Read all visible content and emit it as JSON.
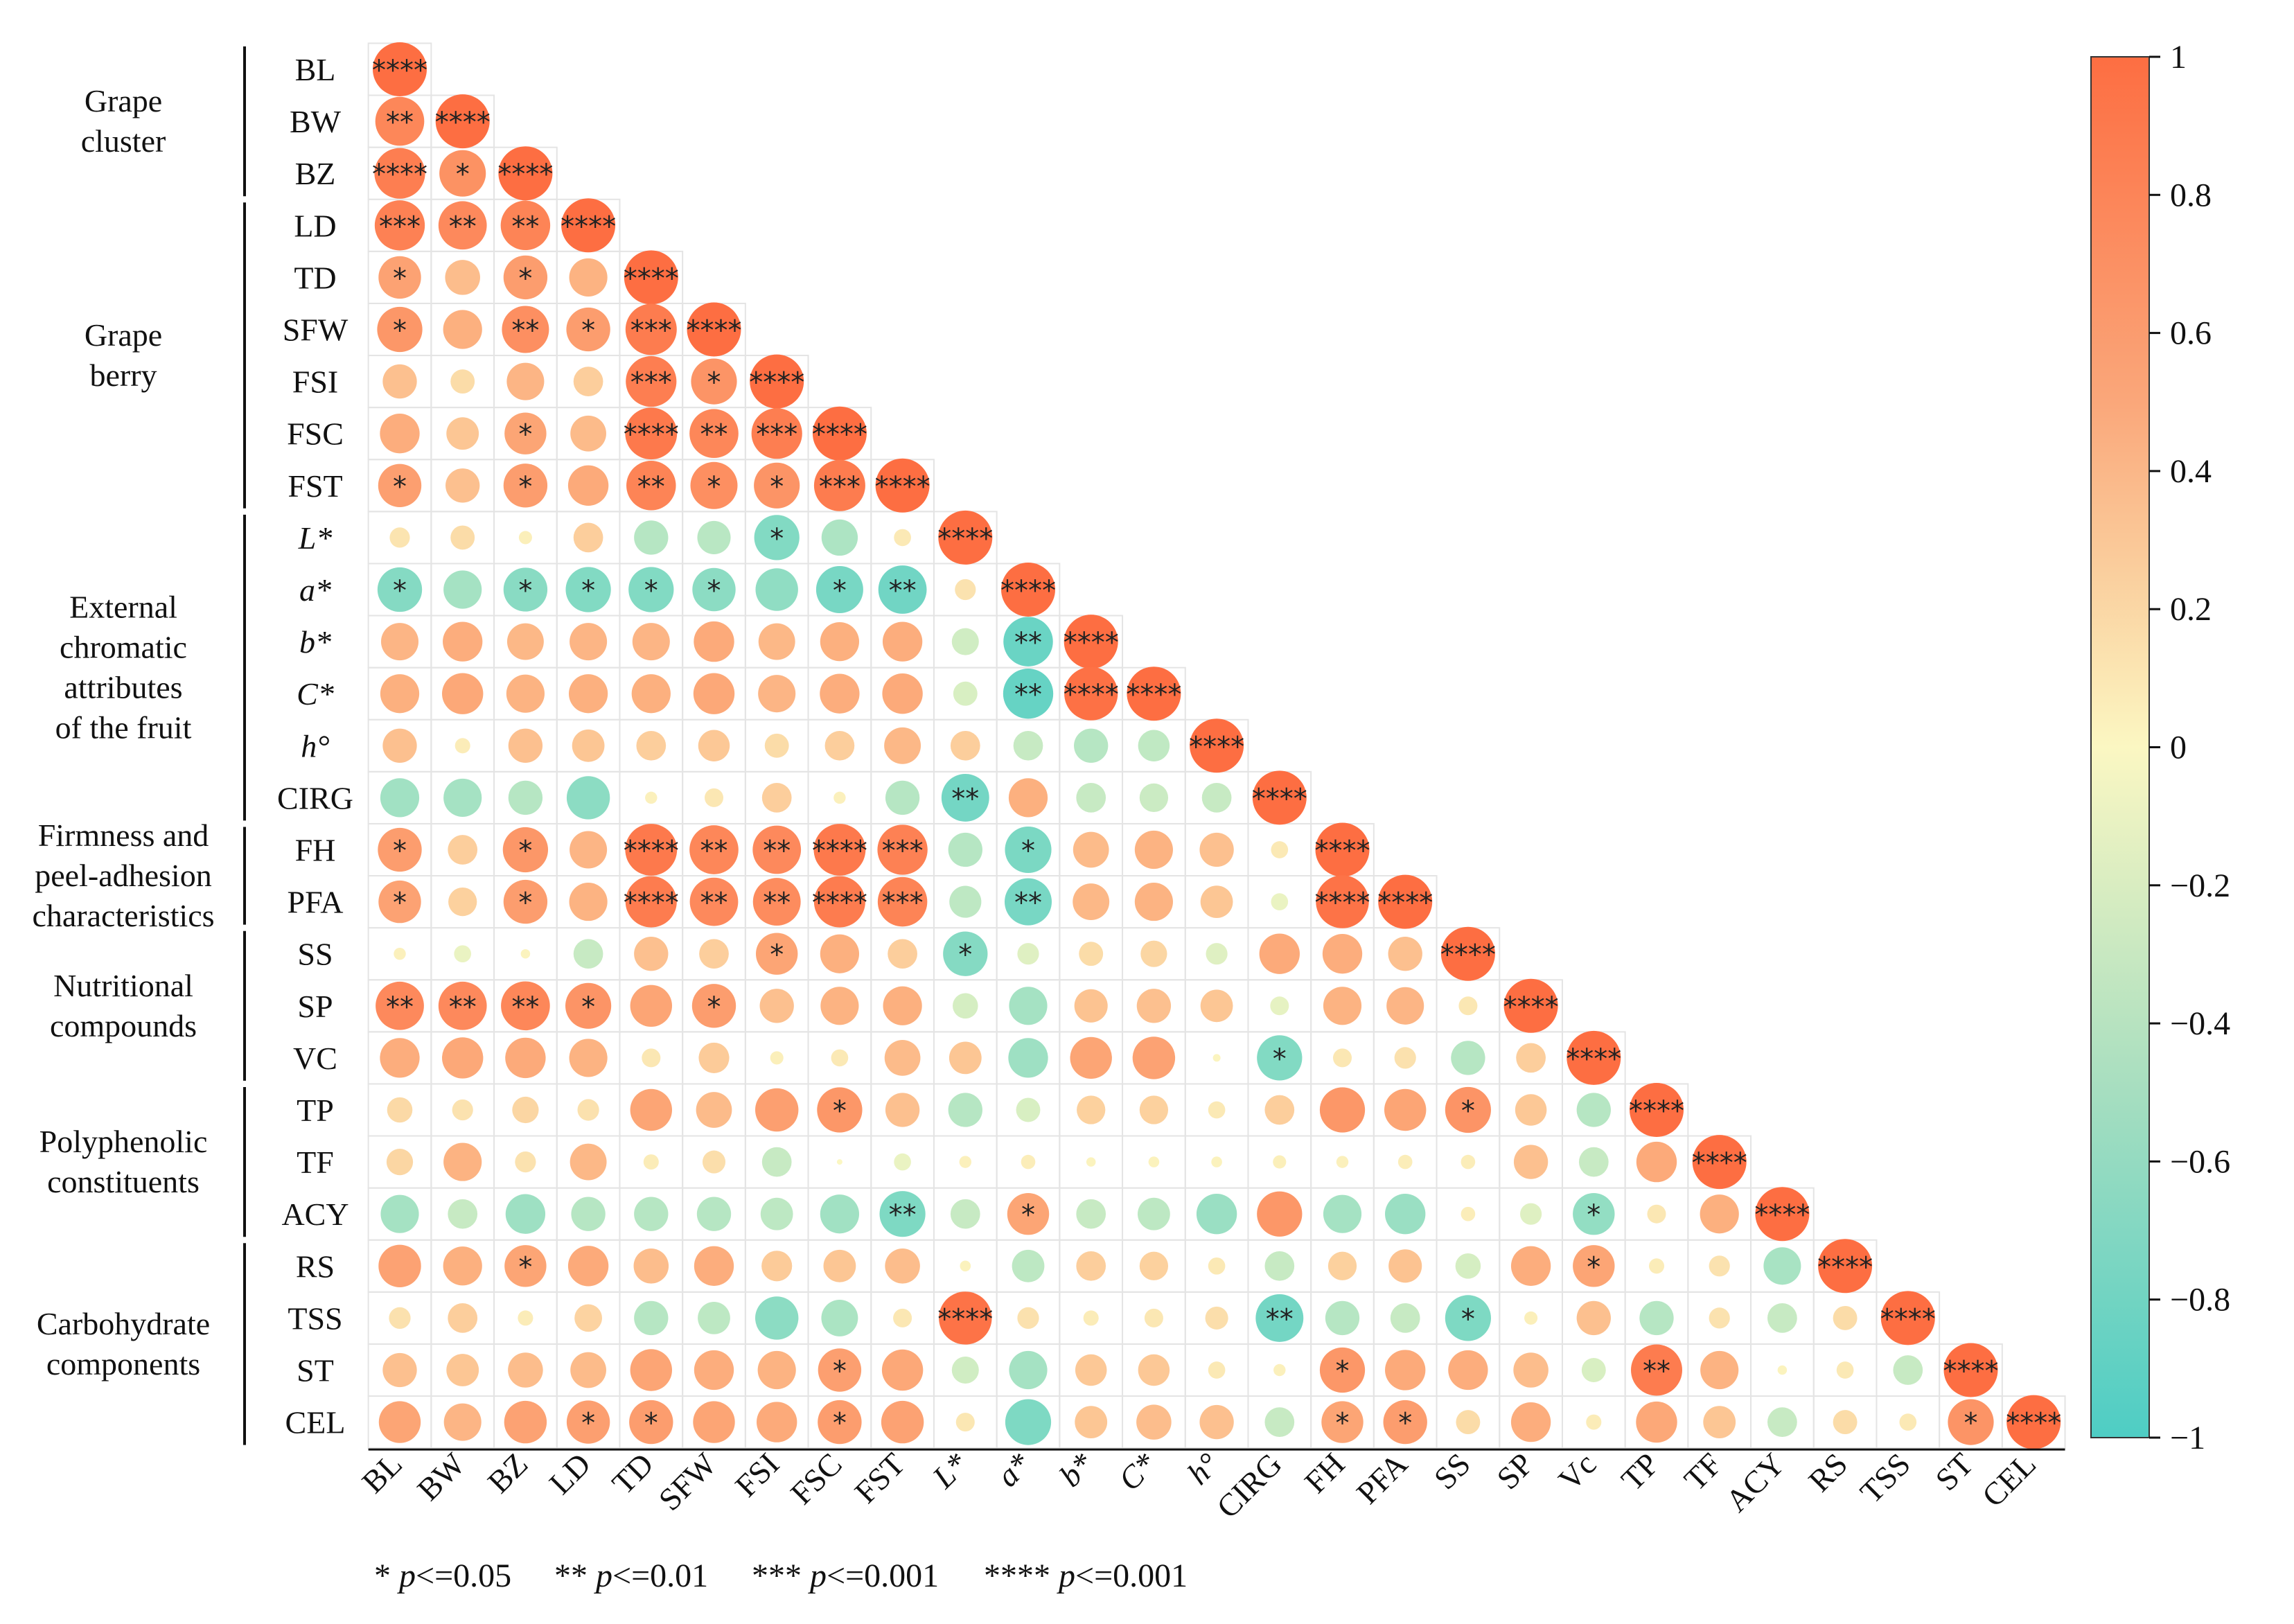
{
  "chart_data": {
    "type": "heatmap",
    "subtype": "correlation-lower-triangle",
    "variables": [
      "BL",
      "BW",
      "BZ",
      "LD",
      "TD",
      "SFW",
      "FSI",
      "FSC",
      "FST",
      "L*",
      "a*",
      "b*",
      "C*",
      "h°",
      "CIRG",
      "FH",
      "PFA",
      "SS",
      "SP",
      "VC",
      "TP",
      "TF",
      "ACY",
      "RS",
      "TSS",
      "ST",
      "CEL"
    ],
    "col_labels": [
      "BL",
      "BW",
      "BZ",
      "LD",
      "TD",
      "SFW",
      "FSI",
      "FSC",
      "FST",
      "L*",
      "a*",
      "b*",
      "C*",
      "h°",
      "CIRG",
      "FH",
      "PFA",
      "SS",
      "SP",
      "Vc",
      "TP",
      "TF",
      "ACY",
      "RS",
      "TSS",
      "ST",
      "CEL"
    ],
    "italic_labels": [
      "L*",
      "a*",
      "b*",
      "C*",
      "h°"
    ],
    "groups": [
      {
        "label": [
          "Grape",
          "cluster"
        ],
        "from": 0,
        "to": 2
      },
      {
        "label": [
          "Grape",
          "berry"
        ],
        "from": 3,
        "to": 8
      },
      {
        "label": [
          "External",
          "chromatic",
          "attributes",
          "of the fruit"
        ],
        "from": 9,
        "to": 14
      },
      {
        "label": [
          "Firmness and",
          "peel-adhesion",
          "characteristics"
        ],
        "from": 15,
        "to": 16
      },
      {
        "label": [
          "Nutritional",
          "compounds"
        ],
        "from": 17,
        "to": 19
      },
      {
        "label": [
          "Polyphenolic",
          "constituents"
        ],
        "from": 20,
        "to": 22
      },
      {
        "label": [
          "Carbohydrate",
          "components"
        ],
        "from": 23,
        "to": 26
      }
    ],
    "correlations": [
      [
        1
      ],
      [
        0.82,
        1
      ],
      [
        0.88,
        0.74,
        1
      ],
      [
        0.86,
        0.8,
        0.84,
        1
      ],
      [
        0.62,
        0.42,
        0.66,
        0.5,
        1
      ],
      [
        0.7,
        0.52,
        0.76,
        0.66,
        0.9,
        1
      ],
      [
        0.4,
        0.2,
        0.48,
        0.3,
        0.88,
        0.72,
        1
      ],
      [
        0.54,
        0.36,
        0.6,
        0.44,
        0.92,
        0.82,
        0.88,
        1
      ],
      [
        0.64,
        0.4,
        0.66,
        0.56,
        0.84,
        0.76,
        0.72,
        0.9,
        1
      ],
      [
        0.14,
        0.2,
        0.06,
        0.3,
        -0.4,
        -0.38,
        -0.7,
        -0.45,
        0.1,
        1
      ],
      [
        -0.68,
        -0.5,
        -0.66,
        -0.7,
        -0.7,
        -0.64,
        -0.62,
        -0.76,
        -0.8,
        0.15,
        1
      ],
      [
        0.48,
        0.54,
        0.46,
        0.48,
        0.48,
        0.56,
        0.46,
        0.52,
        0.54,
        -0.25,
        -0.84,
        1
      ],
      [
        0.52,
        0.58,
        0.5,
        0.52,
        0.52,
        0.58,
        0.48,
        0.54,
        0.56,
        -0.2,
        -0.86,
        0.98,
        1
      ],
      [
        0.4,
        0.08,
        0.4,
        0.36,
        0.3,
        0.34,
        0.2,
        0.3,
        0.46,
        0.3,
        -0.3,
        -0.4,
        -0.34,
        1
      ],
      [
        -0.52,
        -0.5,
        -0.4,
        -0.64,
        0.05,
        0.12,
        0.3,
        0.05,
        -0.4,
        -0.78,
        0.52,
        -0.3,
        -0.28,
        -0.3,
        1
      ],
      [
        0.66,
        0.3,
        0.7,
        0.48,
        0.92,
        0.82,
        0.8,
        0.92,
        0.86,
        -0.4,
        -0.74,
        0.44,
        0.5,
        0.4,
        0.1,
        1
      ],
      [
        0.62,
        0.28,
        0.66,
        0.5,
        0.9,
        0.8,
        0.78,
        0.9,
        0.84,
        -0.35,
        -0.76,
        0.46,
        0.5,
        0.36,
        -0.1,
        0.96,
        1
      ],
      [
        0.05,
        -0.1,
        0.03,
        -0.3,
        0.4,
        0.3,
        0.6,
        0.52,
        0.3,
        -0.68,
        -0.16,
        0.2,
        0.24,
        -0.16,
        0.56,
        0.54,
        0.4,
        1
      ],
      [
        0.8,
        0.8,
        0.82,
        0.72,
        0.6,
        0.66,
        0.4,
        0.5,
        0.52,
        -0.22,
        -0.5,
        0.38,
        0.4,
        0.36,
        -0.12,
        0.5,
        0.48,
        0.12,
        1
      ],
      [
        0.54,
        0.58,
        0.56,
        0.5,
        0.12,
        0.32,
        0.06,
        0.1,
        0.44,
        0.36,
        -0.54,
        0.6,
        0.62,
        0.02,
        -0.7,
        0.12,
        0.16,
        -0.4,
        0.3,
        1
      ],
      [
        0.22,
        0.15,
        0.24,
        0.16,
        0.6,
        0.44,
        0.64,
        0.7,
        0.4,
        -0.4,
        -0.2,
        0.28,
        0.28,
        0.1,
        0.3,
        0.7,
        0.6,
        0.72,
        0.34,
        -0.4,
        1
      ],
      [
        0.24,
        0.5,
        0.15,
        0.46,
        0.08,
        0.18,
        -0.3,
        0.0,
        -0.1,
        0.05,
        0.07,
        0.03,
        0.04,
        0.04,
        0.06,
        0.05,
        0.07,
        0.07,
        0.4,
        -0.3,
        0.56,
        1
      ],
      [
        -0.5,
        -0.3,
        -0.54,
        -0.4,
        -0.4,
        -0.4,
        -0.36,
        -0.52,
        -0.72,
        -0.3,
        0.6,
        -0.3,
        -0.36,
        -0.56,
        0.7,
        -0.5,
        -0.56,
        0.07,
        -0.16,
        -0.6,
        0.12,
        0.52,
        1
      ],
      [
        0.62,
        0.52,
        0.6,
        0.56,
        0.42,
        0.54,
        0.32,
        0.36,
        0.42,
        0.04,
        -0.36,
        0.3,
        0.28,
        0.1,
        -0.3,
        0.28,
        0.38,
        -0.22,
        0.54,
        0.6,
        0.08,
        0.15,
        -0.48,
        1
      ],
      [
        0.16,
        0.3,
        0.08,
        0.26,
        -0.4,
        -0.36,
        -0.64,
        -0.46,
        0.12,
        0.96,
        0.16,
        0.08,
        0.12,
        0.18,
        -0.78,
        -0.4,
        -0.3,
        -0.72,
        0.06,
        0.4,
        -0.4,
        0.15,
        -0.3,
        0.2,
        1
      ],
      [
        0.4,
        0.36,
        0.42,
        0.44,
        0.6,
        0.54,
        0.5,
        0.64,
        0.58,
        -0.25,
        -0.5,
        0.34,
        0.34,
        0.1,
        0.05,
        0.7,
        0.56,
        0.54,
        0.42,
        -0.2,
        0.9,
        0.5,
        0.03,
        0.1,
        -0.3,
        1
      ],
      [
        0.6,
        0.48,
        0.62,
        0.64,
        0.66,
        0.6,
        0.56,
        0.66,
        0.62,
        0.12,
        -0.72,
        0.36,
        0.42,
        0.4,
        -0.3,
        0.6,
        0.66,
        0.2,
        0.54,
        0.08,
        0.58,
        0.36,
        -0.3,
        0.2,
        0.1,
        0.72,
        1
      ]
    ],
    "significance": [
      [
        "****"
      ],
      [
        "**",
        "****"
      ],
      [
        "****",
        "*",
        "****"
      ],
      [
        "***",
        "**",
        "**",
        "****"
      ],
      [
        "*",
        "",
        "*",
        "",
        "****"
      ],
      [
        "*",
        "",
        "**",
        "*",
        "***",
        "****"
      ],
      [
        "",
        "",
        "",
        "",
        "***",
        "*",
        "****"
      ],
      [
        "",
        "",
        "*",
        "",
        "****",
        "**",
        "***",
        "****"
      ],
      [
        "*",
        "",
        "*",
        "",
        "**",
        "*",
        "*",
        "***",
        "****"
      ],
      [
        "",
        "",
        "",
        "",
        "",
        "",
        "*",
        "",
        "",
        "****"
      ],
      [
        "*",
        "",
        "*",
        "*",
        "*",
        "*",
        "",
        "*",
        "**",
        "",
        "****"
      ],
      [
        "",
        "",
        "",
        "",
        "",
        "",
        "",
        "",
        "",
        "",
        "**",
        "****"
      ],
      [
        "",
        "",
        "",
        "",
        "",
        "",
        "",
        "",
        "",
        "",
        "**",
        "****",
        "****"
      ],
      [
        "",
        "",
        "",
        "",
        "",
        "",
        "",
        "",
        "",
        "",
        "",
        "",
        "",
        "****"
      ],
      [
        "",
        "",
        "",
        "",
        "",
        "",
        "",
        "",
        "",
        "**",
        "",
        "",
        "",
        "",
        "****"
      ],
      [
        "*",
        "",
        "*",
        "",
        "****",
        "**",
        "**",
        "****",
        "***",
        "",
        "*",
        "",
        "",
        "",
        "",
        "****"
      ],
      [
        "*",
        "",
        "*",
        "",
        "****",
        "**",
        "**",
        "****",
        "***",
        "",
        "**",
        "",
        "",
        "",
        "",
        "****",
        "****"
      ],
      [
        "",
        "",
        "",
        "",
        "",
        "",
        "*",
        "",
        "",
        "*",
        "",
        "",
        "",
        "",
        "",
        "",
        "",
        "****"
      ],
      [
        "**",
        "**",
        "**",
        "*",
        "",
        "*",
        "",
        "",
        "",
        "",
        "",
        "",
        "",
        "",
        "",
        "",
        "",
        "",
        "****"
      ],
      [
        "",
        "",
        "",
        "",
        "",
        "",
        "",
        "",
        "",
        "",
        "",
        "",
        "",
        "",
        "*",
        "",
        "",
        "",
        "",
        "****"
      ],
      [
        "",
        "",
        "",
        "",
        "",
        "",
        "",
        "*",
        "",
        "",
        "",
        "",
        "",
        "",
        "",
        "",
        "",
        "*",
        "",
        "",
        "****"
      ],
      [
        "",
        "",
        "",
        "",
        "",
        "",
        "",
        "",
        "",
        "",
        "",
        "",
        "",
        "",
        "",
        "",
        "",
        "",
        "",
        "",
        "",
        "****"
      ],
      [
        "",
        "",
        "",
        "",
        "",
        "",
        "",
        "",
        "**",
        "",
        "*",
        "",
        "",
        "",
        "",
        "",
        "",
        "",
        "",
        "*",
        "",
        "",
        "****"
      ],
      [
        "",
        "",
        "*",
        "",
        "",
        "",
        "",
        "",
        "",
        "",
        "",
        "",
        "",
        "",
        "",
        "",
        "",
        "",
        "",
        "*",
        "",
        "",
        "",
        "****"
      ],
      [
        "",
        "",
        "",
        "",
        "",
        "",
        "",
        "",
        "",
        "****",
        "",
        "",
        "",
        "",
        "**",
        "",
        "",
        "*",
        "",
        "",
        "",
        "",
        "",
        "",
        "****"
      ],
      [
        "",
        "",
        "",
        "",
        "",
        "",
        "",
        "*",
        "",
        "",
        "",
        "",
        "",
        "",
        "",
        "*",
        "",
        "",
        "",
        "",
        "**",
        "",
        "",
        "",
        "",
        "****"
      ],
      [
        "",
        "",
        "",
        "*",
        "*",
        "",
        "",
        "*",
        "",
        "",
        "",
        "",
        "",
        "",
        "",
        "*",
        "*",
        "",
        "",
        "",
        "",
        "",
        "",
        "",
        "",
        "*",
        "****"
      ]
    ],
    "colorbar": {
      "ticks": [
        "1",
        "0.8",
        "0.6",
        "0.4",
        "0.2",
        "0",
        "−0.2",
        "−0.4",
        "−0.6",
        "−0.8",
        "−1"
      ],
      "range": [
        -1,
        1
      ],
      "colors": {
        "neg": "#4ECDC4",
        "mid": "#FBF7C2",
        "pos": "#FD6E42"
      }
    },
    "significance_legend": [
      {
        "stars": "*",
        "p": "p",
        "rel": "<=0.05"
      },
      {
        "stars": "**",
        "p": "p",
        "rel": "<=0.01"
      },
      {
        "stars": "***",
        "p": "p",
        "rel": "<=0.001"
      },
      {
        "stars": "****",
        "p": "p",
        "rel": "<=0.001"
      }
    ]
  }
}
